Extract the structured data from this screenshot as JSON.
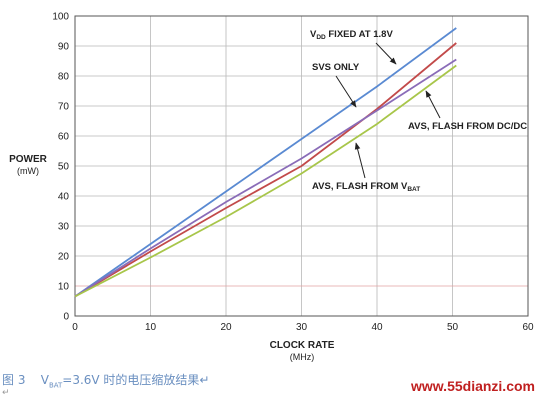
{
  "chart_data": {
    "type": "line",
    "ylabel": "POWER",
    "ylabel_unit": "(mW)",
    "xlabel": "CLOCK RATE",
    "xlabel_unit": "(MHz)",
    "xlim": [
      0,
      60
    ],
    "ylim": [
      0,
      100
    ],
    "x_ticks": [
      "0",
      "10",
      "20",
      "30",
      "40",
      "50",
      "60"
    ],
    "y_ticks": [
      "0",
      "10",
      "20",
      "30",
      "40",
      "50",
      "60",
      "70",
      "80",
      "90",
      "100"
    ],
    "grid": true,
    "series": [
      {
        "name": "VDD FIXED AT 1.8V",
        "color": "#5a8ad2",
        "points": [
          [
            0,
            6.5
          ],
          [
            10,
            24
          ],
          [
            20,
            41.5
          ],
          [
            30,
            59
          ],
          [
            40,
            76.5
          ],
          [
            50.5,
            96
          ]
        ]
      },
      {
        "name": "SVS ONLY",
        "color": "#c24a4a",
        "points": [
          [
            0,
            6.5
          ],
          [
            10,
            21.5
          ],
          [
            20,
            36
          ],
          [
            30,
            50
          ],
          [
            40,
            69
          ],
          [
            50.5,
            91
          ]
        ]
      },
      {
        "name": "AVS, FLASH FROM DC/DC",
        "color": "#8a6cb8",
        "points": [
          [
            0,
            6.5
          ],
          [
            10,
            22.5
          ],
          [
            20,
            38
          ],
          [
            30,
            52.5
          ],
          [
            40,
            68.5
          ],
          [
            50.5,
            85.5
          ]
        ]
      },
      {
        "name": "AVS, FLASH FROM VBAT",
        "color": "#a8c64a",
        "points": [
          [
            0,
            6.5
          ],
          [
            10,
            19.5
          ],
          [
            20,
            33
          ],
          [
            30,
            47.5
          ],
          [
            40,
            64
          ],
          [
            50.5,
            83.5
          ]
        ]
      }
    ],
    "annotations": [
      {
        "key": "vdd",
        "main": "V",
        "sub": "DD",
        "rest": " FIXED AT 1.8V"
      },
      {
        "key": "svs",
        "text": "SVS ONLY"
      },
      {
        "key": "dcdc",
        "text": "AVS, FLASH FROM DC/DC"
      },
      {
        "key": "vbat",
        "main": "AVS, FLASH FROM V",
        "sub": "BAT"
      }
    ]
  },
  "caption": {
    "figure": "图 3",
    "v": "V",
    "sub": "BAT",
    "rest": "=3.6V 时的电压缩放结果↵"
  },
  "watermark": "www.55dianzi.com",
  "pilcrow": "↵"
}
